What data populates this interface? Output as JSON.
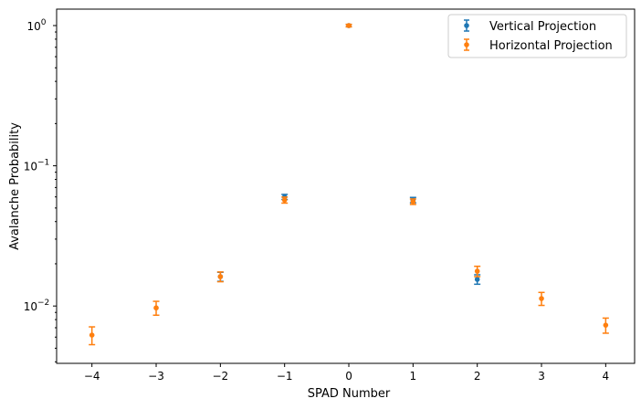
{
  "chart_data": {
    "type": "scatter",
    "xlabel": "SPAD Number",
    "ylabel": "Avalanche Probability",
    "yscale": "log",
    "xlim": [
      -4.55,
      4.45
    ],
    "ylim": [
      0.0039,
      1.31
    ],
    "xticks": [
      -4,
      -3,
      -2,
      -1,
      0,
      1,
      2,
      3,
      4
    ],
    "xtick_labels": [
      "−4",
      "−3",
      "−2",
      "−1",
      "0",
      "1",
      "2",
      "3",
      "4"
    ],
    "yticks": [
      0.01,
      0.1,
      1
    ],
    "ytick_labels": [
      [
        "10",
        "−2"
      ],
      [
        "10",
        "−1"
      ],
      [
        "10",
        "0"
      ]
    ],
    "grid": false,
    "legend_position": "top-right",
    "series": [
      {
        "name": "Vertical Projection",
        "color": "#1f77b4",
        "x": [
          -2,
          -1,
          0,
          1,
          2
        ],
        "y": [
          0.0162,
          0.06,
          1.0,
          0.057,
          0.0155
        ],
        "yerr": [
          0.0012,
          0.0025,
          0.02,
          0.0025,
          0.0012
        ]
      },
      {
        "name": "Horizontal Projection",
        "color": "#ff7f0e",
        "x": [
          -4,
          -3,
          -2,
          -1,
          0,
          1,
          2,
          3,
          4
        ],
        "y": [
          0.0062,
          0.0097,
          0.0162,
          0.057,
          1.0,
          0.0555,
          0.0177,
          0.0113,
          0.0073
        ],
        "yerr": [
          0.0009,
          0.0011,
          0.0013,
          0.0028,
          0.02,
          0.0025,
          0.0015,
          0.0012,
          0.0009
        ]
      }
    ]
  }
}
